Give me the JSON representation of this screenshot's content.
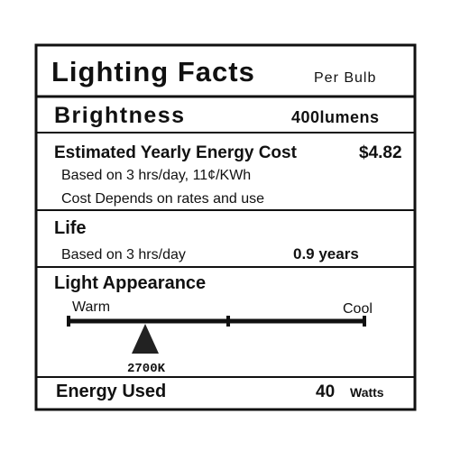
{
  "header": {
    "title": "Lighting Facts",
    "subtitle": "Per Bulb"
  },
  "brightness": {
    "label": "Brightness",
    "value": "400lumens"
  },
  "energy_cost": {
    "label": "Estimated Yearly Energy Cost",
    "value": "$4.82",
    "notes": [
      "Based on 3 hrs/day, 11¢/KWh",
      "Cost Depends on rates and use"
    ]
  },
  "life": {
    "label": "Life",
    "note": "Based on 3 hrs/day",
    "value": "0.9 years"
  },
  "light_appearance": {
    "label": "Light Appearance",
    "warm": "Warm",
    "cool": "Cool",
    "value": "2700K"
  },
  "energy_used": {
    "label": "Energy Used",
    "value": "40",
    "unit": "Watts"
  }
}
